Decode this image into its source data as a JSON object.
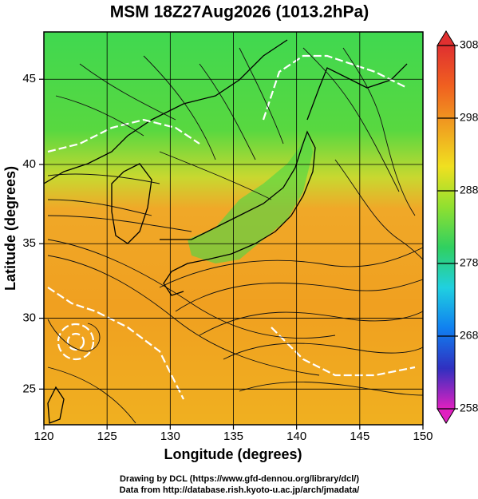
{
  "chart_data": {
    "type": "map",
    "title": "MSM 18Z27Aug2026 (1013.2hPa)",
    "x_label": "Longitude (degrees)",
    "y_label": "Latitude  (degrees)",
    "projection": "mercator",
    "xlim": [
      120,
      150
    ],
    "ylim": [
      22.4,
      47.6
    ],
    "xticks": [
      120,
      125,
      130,
      135,
      140,
      145,
      150
    ],
    "yticks": [
      25,
      30,
      35,
      40,
      45
    ],
    "grid": true,
    "colorbar": {
      "lim": [
        258,
        308
      ],
      "ticks": [
        258,
        268,
        278,
        288,
        298,
        308
      ],
      "colors": [
        "#e020c0",
        "#3030c0",
        "#1080f0",
        "#20d0e0",
        "#30d060",
        "#90e030",
        "#f0e020",
        "#f0a020",
        "#f06020",
        "#e03030"
      ]
    },
    "credits": [
      "Drawing by DCL (https://www.gfd-dennou.org/library/dcl/)",
      "Data from http://database.rish.kyoto-u.ac.jp/arch/jmadata/"
    ]
  }
}
